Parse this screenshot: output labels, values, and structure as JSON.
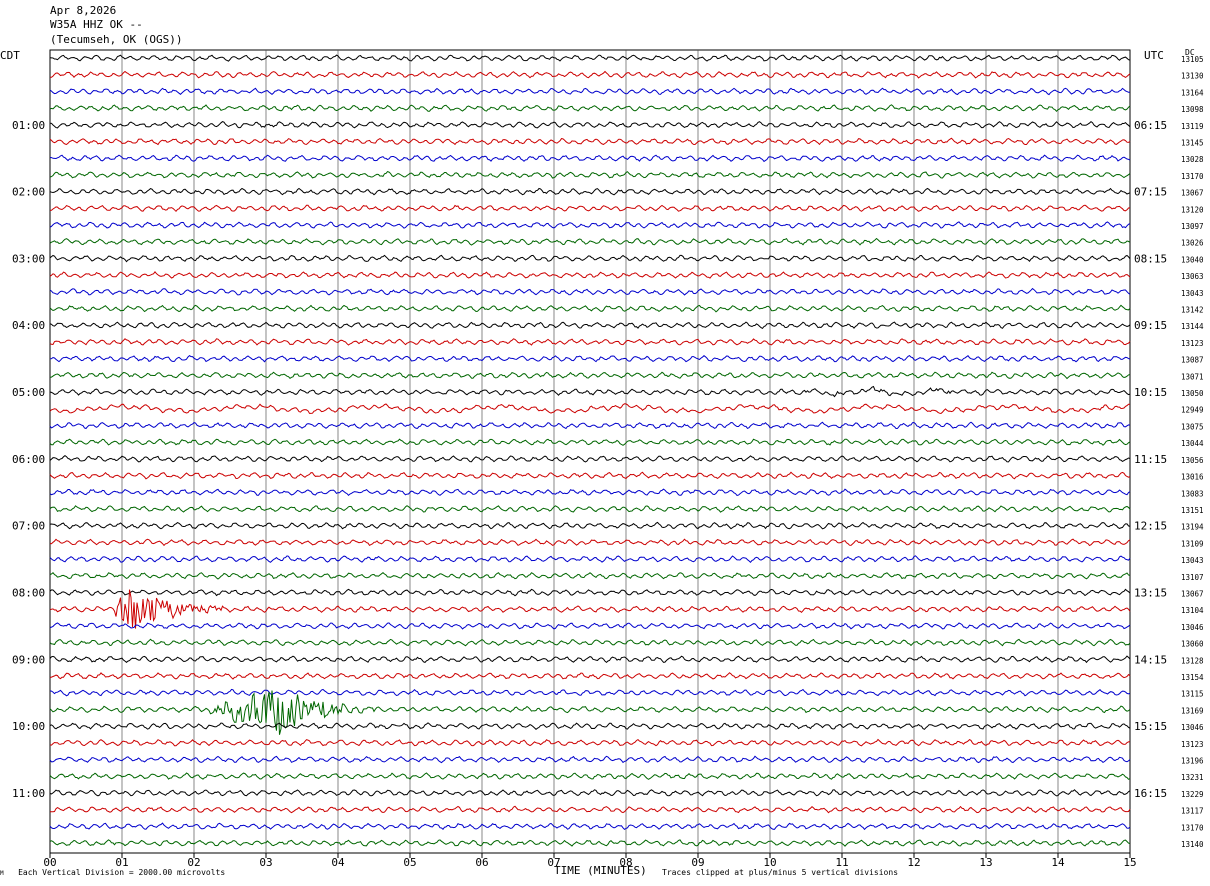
{
  "header": {
    "date": "Apr 8,2026",
    "station": "W35A HHZ OK --",
    "location": "(Tecumseh, OK (OGS))"
  },
  "axis_labels": {
    "left": "CDT",
    "right": "UTC",
    "counts": "DC"
  },
  "footer": {
    "scale_note": "Each Vertical Division = 2000.00 microvolts",
    "xlabel": "TIME (MINUTES)",
    "clip_note": "Traces clipped at plus/minus 5 vertical divisions",
    "corner_mark": "M"
  },
  "colors": {
    "trace_cycle": [
      "#000000",
      "#cc0000",
      "#0000cc",
      "#006600"
    ],
    "grid": "#000000"
  },
  "chart_data": {
    "type": "line",
    "subtype": "helicorder",
    "xlabel": "TIME (MINUTES)",
    "x_ticks": [
      "00",
      "01",
      "02",
      "03",
      "04",
      "05",
      "06",
      "07",
      "08",
      "09",
      "10",
      "11",
      "12",
      "13",
      "14",
      "15"
    ],
    "xlim": [
      0,
      15
    ],
    "trace_count": 48,
    "minutes_per_trace": 15,
    "left_hour_labels": [
      "01:00",
      "02:00",
      "03:00",
      "04:00",
      "05:00",
      "06:00",
      "07:00",
      "08:00",
      "09:00",
      "10:00",
      "11:00"
    ],
    "right_hour_labels": [
      "06:15",
      "07:15",
      "08:15",
      "09:15",
      "10:15",
      "11:15",
      "12:15",
      "13:15",
      "14:15",
      "15:15",
      "16:15"
    ],
    "trace_dc_values": [
      "13105",
      "13130",
      "13164",
      "13098",
      "13119",
      "13145",
      "13028",
      "13170",
      "13067",
      "13120",
      "13097",
      "13026",
      "13040",
      "13063",
      "13043",
      "13142",
      "13144",
      "13123",
      "13087",
      "13071",
      "13050",
      "12949",
      "13075",
      "13044",
      "13056",
      "13016",
      "13083",
      "13151",
      "13194",
      "13109",
      "13043",
      "13107",
      "13067",
      "13104",
      "13046",
      "13060",
      "13128",
      "13154",
      "13115",
      "13169",
      "13046",
      "13123",
      "13196",
      "13231",
      "13229",
      "13117",
      "13170",
      "13140"
    ],
    "events": [
      {
        "trace": 33,
        "start_min": 0.8,
        "peak_min": 1.2,
        "end_min": 2.4,
        "amplitude_div": 2.4
      },
      {
        "trace": 39,
        "start_min": 2.1,
        "peak_min": 3.2,
        "end_min": 4.5,
        "amplitude_div": 2.6
      }
    ],
    "grid": true
  }
}
